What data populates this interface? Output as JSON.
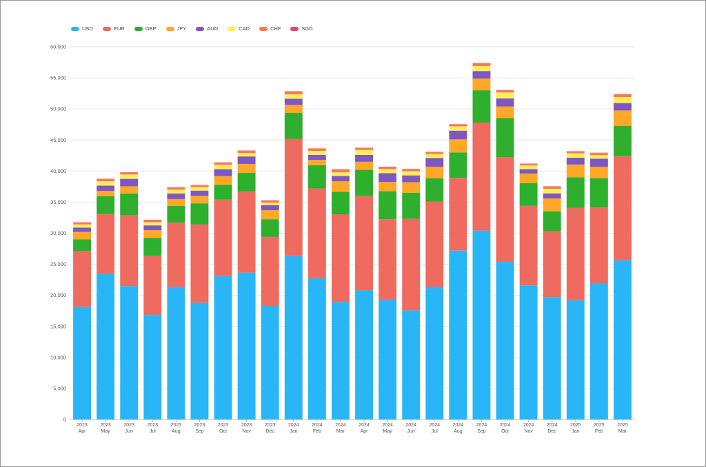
{
  "chart_data": {
    "type": "bar",
    "stacked": true,
    "title": "",
    "xlabel": "",
    "ylabel": "",
    "ylim": [
      0,
      60000
    ],
    "yticks": [
      "0",
      "5,000",
      "10,000",
      "15,000",
      "20,000",
      "25,000",
      "30,000",
      "35,000",
      "40,000",
      "45,000",
      "50,000",
      "55,000",
      "60,000"
    ],
    "ytick_values": [
      0,
      5000,
      10000,
      15000,
      20000,
      25000,
      30000,
      35000,
      40000,
      45000,
      50000,
      55000,
      60000
    ],
    "grid": true,
    "legend_position": "top-left",
    "categories": [
      {
        "year": "2023",
        "month": "Apr"
      },
      {
        "year": "2023",
        "month": "May"
      },
      {
        "year": "2023",
        "month": "Jun"
      },
      {
        "year": "2023",
        "month": "Jul"
      },
      {
        "year": "2023",
        "month": "Aug"
      },
      {
        "year": "2023",
        "month": "Sep"
      },
      {
        "year": "2023",
        "month": "Oct"
      },
      {
        "year": "2023",
        "month": "Nov"
      },
      {
        "year": "2023",
        "month": "Dec"
      },
      {
        "year": "2024",
        "month": "Jan"
      },
      {
        "year": "2024",
        "month": "Feb"
      },
      {
        "year": "2024",
        "month": "Mar"
      },
      {
        "year": "2024",
        "month": "Apr"
      },
      {
        "year": "2024",
        "month": "May"
      },
      {
        "year": "2024",
        "month": "Jun"
      },
      {
        "year": "2024",
        "month": "Jul"
      },
      {
        "year": "2024",
        "month": "Aug"
      },
      {
        "year": "2024",
        "month": "Sep"
      },
      {
        "year": "2024",
        "month": "Oct"
      },
      {
        "year": "2024",
        "month": "Nov"
      },
      {
        "year": "2024",
        "month": "Dec"
      },
      {
        "year": "2025",
        "month": "Jan"
      },
      {
        "year": "2025",
        "month": "Feb"
      },
      {
        "year": "2025",
        "month": "Mar"
      }
    ],
    "series": [
      {
        "name": "USD",
        "color": "#29b6f6",
        "values": [
          18100,
          23450,
          21500,
          16850,
          21300,
          18750,
          23100,
          23650,
          18300,
          26350,
          22750,
          18950,
          20800,
          19300,
          17600,
          21300,
          27200,
          30400,
          25400,
          21600,
          19700,
          19200,
          21900,
          25650
        ]
      },
      {
        "name": "EUR",
        "color": "#ef6b5f",
        "values": [
          9000,
          9650,
          11400,
          9500,
          10400,
          12650,
          12300,
          13050,
          11100,
          18800,
          14450,
          14100,
          15200,
          12950,
          14700,
          13800,
          11700,
          17400,
          16850,
          12800,
          10600,
          14900,
          12250,
          16750
        ]
      },
      {
        "name": "GBP",
        "color": "#2eaf2e",
        "values": [
          1900,
          2850,
          3500,
          2900,
          2700,
          3400,
          2400,
          3000,
          2850,
          4200,
          3750,
          3600,
          4200,
          4500,
          4200,
          3750,
          4100,
          5200,
          6300,
          3650,
          3200,
          4900,
          4700,
          4850
        ]
      },
      {
        "name": "JPY",
        "color": "#ffa726",
        "values": [
          1200,
          850,
          1150,
          1250,
          1100,
          1200,
          1400,
          1450,
          1450,
          1300,
          850,
          1700,
          1300,
          1500,
          1700,
          1850,
          2100,
          1900,
          1850,
          1550,
          2100,
          2050,
          1850,
          2500
        ]
      },
      {
        "name": "AUD",
        "color": "#7e57c2",
        "values": [
          700,
          850,
          1200,
          750,
          900,
          850,
          1100,
          1200,
          800,
          1000,
          800,
          850,
          1100,
          1400,
          1100,
          1400,
          1400,
          1200,
          1300,
          700,
          800,
          1100,
          1300,
          1200
        ]
      },
      {
        "name": "CAD",
        "color": "#ffee58",
        "values": [
          500,
          700,
          700,
          500,
          600,
          550,
          700,
          550,
          400,
          700,
          650,
          600,
          800,
          650,
          650,
          650,
          700,
          800,
          950,
          600,
          750,
          700,
          550,
          950
        ]
      },
      {
        "name": "CHF",
        "color": "#f57c52",
        "values": [
          300,
          350,
          300,
          350,
          350,
          300,
          350,
          350,
          350,
          450,
          350,
          450,
          300,
          350,
          350,
          300,
          300,
          450,
          350,
          250,
          350,
          300,
          350,
          450
        ]
      },
      {
        "name": "SGD",
        "color": "#ec407a",
        "values": [
          50,
          50,
          50,
          50,
          50,
          50,
          50,
          50,
          50,
          50,
          50,
          50,
          50,
          50,
          50,
          50,
          50,
          50,
          50,
          50,
          50,
          50,
          50,
          50
        ]
      }
    ]
  }
}
